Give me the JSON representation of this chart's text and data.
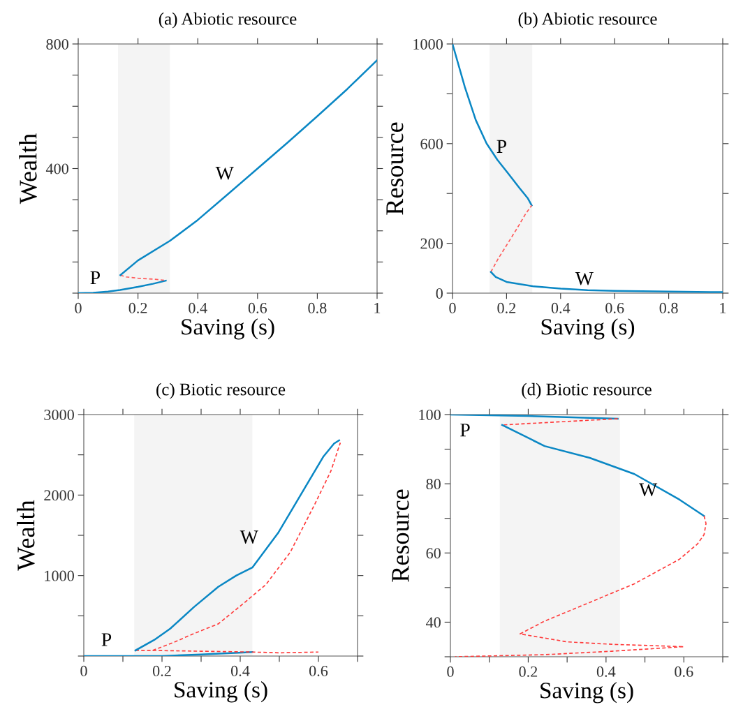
{
  "chart_data": [
    {
      "type": "line",
      "title": "(a) Abiotic resource",
      "xlabel": "Saving (s)",
      "ylabel": "Wealth",
      "xlim": [
        0,
        1
      ],
      "ylim": [
        0,
        800
      ],
      "xticks": [
        0,
        0.2,
        0.4,
        0.6,
        0.8,
        1
      ],
      "yticks": [
        {
          "value": 0,
          "label": null
        },
        {
          "value": 100,
          "label": null
        },
        {
          "value": 200,
          "label": null
        },
        {
          "value": 300,
          "label": null
        },
        400,
        {
          "value": 500,
          "label": null
        },
        {
          "value": 600,
          "label": null
        },
        {
          "value": 700,
          "label": null
        },
        800
      ],
      "grid": false,
      "marker": "none",
      "series": [
        {
          "color": "#0a87c4",
          "line_style": "solid",
          "x": [
            0,
            0.05,
            0.1,
            0.14,
            0.2,
            0.25,
            0.293
          ],
          "values": [
            0,
            1,
            5,
            10,
            20,
            30,
            40
          ]
        },
        {
          "color": "#ff5a5a",
          "line_style": "dashed",
          "x": [
            0.141,
            0.16,
            0.2,
            0.25,
            0.293
          ],
          "values": [
            58,
            52,
            48,
            45,
            41
          ]
        },
        {
          "color": "#0a87c4",
          "line_style": "solid",
          "x": [
            0.141,
            0.2,
            0.307,
            0.4,
            0.5,
            0.6,
            0.7,
            0.8,
            0.9,
            1
          ],
          "values": [
            58,
            105,
            168,
            235,
            317,
            400,
            483,
            568,
            655,
            748
          ]
        }
      ],
      "bands": [
        {
          "axis": "x",
          "from": 0.133,
          "to": 0.307,
          "color": "#f4f4f4"
        }
      ],
      "annotations": [
        "P",
        "W"
      ]
    },
    {
      "type": "line",
      "title": "(b) Abiotic resource",
      "xlabel": "Saving (s)",
      "ylabel": "Resource",
      "xlim": [
        0,
        1
      ],
      "ylim": [
        0,
        1000
      ],
      "xticks": [
        0,
        0.2,
        0.4,
        0.6,
        0.8,
        1
      ],
      "yticks": [
        0,
        200,
        {
          "value": 400,
          "label": null
        },
        600,
        {
          "value": 800,
          "label": null
        },
        1000
      ],
      "grid": false,
      "marker": "none",
      "series": [
        {
          "color": "#0a87c4",
          "line_style": "solid",
          "x": [
            0,
            0.046,
            0.086,
            0.126,
            0.166,
            0.207,
            0.247,
            0.279,
            0.293
          ],
          "values": [
            1000,
            826,
            695,
            601,
            535,
            479,
            423,
            380,
            352
          ]
        },
        {
          "color": "#ff5a5a",
          "line_style": "dashed",
          "x": [
            0.142,
            0.17,
            0.203,
            0.24,
            0.271,
            0.293
          ],
          "values": [
            85,
            140,
            197,
            262,
            319,
            352
          ]
        },
        {
          "color": "#0a87c4",
          "line_style": "solid",
          "x": [
            0.142,
            0.16,
            0.2,
            0.3,
            0.4,
            0.5,
            0.6,
            0.8,
            1
          ],
          "values": [
            85,
            65,
            45,
            27,
            18,
            12,
            9,
            6,
            4
          ]
        }
      ],
      "bands": [
        {
          "axis": "x",
          "from": 0.137,
          "to": 0.295,
          "color": "#f4f4f4"
        }
      ],
      "annotations": [
        "P",
        "W"
      ]
    },
    {
      "type": "line",
      "title": "(c) Biotic resource",
      "xlabel": "Saving (s)",
      "ylabel": "Wealth",
      "xlim": [
        0,
        0.7
      ],
      "ylim": [
        0,
        3000
      ],
      "xticks": [
        0,
        {
          "value": 0.1,
          "label": null
        },
        0.2,
        {
          "value": 0.3,
          "label": null
        },
        0.4,
        {
          "value": 0.5,
          "label": null
        },
        0.6,
        {
          "value": 0.7,
          "label": null
        }
      ],
      "yticks": [
        {
          "value": 0,
          "label": null
        },
        {
          "value": 500,
          "label": null
        },
        1000,
        {
          "value": 1500,
          "label": null
        },
        2000,
        {
          "value": 2500,
          "label": null
        },
        3000
      ],
      "grid": false,
      "marker": "none",
      "series": [
        {
          "color": "#0a87c4",
          "line_style": "solid",
          "x": [
            0,
            0.2,
            0.3,
            0.431
          ],
          "values": [
            0,
            0,
            20,
            50
          ]
        },
        {
          "color": "#ff3b3b",
          "line_style": "dashed",
          "x": [
            0.132,
            0.176,
            0.3,
            0.431,
            0.5,
            0.6
          ],
          "values": [
            70,
            70,
            60,
            50,
            40,
            50
          ]
        },
        {
          "color": "#0a87c4",
          "line_style": "solid",
          "x": [
            0.132,
            0.18,
            0.221,
            0.282,
            0.344,
            0.39,
            0.431,
            0.497,
            0.558,
            0.613,
            0.64,
            0.653
          ],
          "values": [
            70,
            200,
            340,
            610,
            860,
            1000,
            1100,
            1530,
            2030,
            2480,
            2640,
            2680
          ]
        },
        {
          "color": "#ff3b3b",
          "line_style": "dashed",
          "x": [
            0.176,
            0.23,
            0.282,
            0.344,
            0.405,
            0.466,
            0.528,
            0.589,
            0.632,
            0.656
          ],
          "values": [
            70,
            170,
            280,
            400,
            640,
            890,
            1290,
            1870,
            2300,
            2650
          ]
        }
      ],
      "bands": [
        {
          "axis": "x",
          "from": 0.129,
          "to": 0.431,
          "color": "#f4f4f4"
        }
      ],
      "annotations": [
        "P",
        "W"
      ]
    },
    {
      "type": "line",
      "title": "(d) Biotic resource",
      "xlabel": "Saving (s)",
      "ylabel": "Resource",
      "xlim": [
        0,
        0.7
      ],
      "ylim": [
        30,
        100
      ],
      "xticks": [
        0,
        {
          "value": 0.1,
          "label": null
        },
        0.2,
        {
          "value": 0.3,
          "label": null
        },
        0.4,
        {
          "value": 0.5,
          "label": null
        },
        0.6,
        {
          "value": 0.7,
          "label": null
        }
      ],
      "yticks": [
        {
          "value": 30,
          "label": null
        },
        40,
        {
          "value": 50,
          "label": null
        },
        60,
        {
          "value": 70,
          "label": null
        },
        80,
        {
          "value": 90,
          "label": null
        },
        100
      ],
      "grid": false,
      "marker": "none",
      "series": [
        {
          "color": "#0a87c4",
          "line_style": "solid",
          "x": [
            0,
            0.2,
            0.43
          ],
          "values": [
            100,
            99.6,
            98.8
          ]
        },
        {
          "color": "#ff3b3b",
          "line_style": "dashed",
          "x": [
            0.43,
            0.133
          ],
          "values": [
            98.8,
            97.0
          ]
        },
        {
          "color": "#0a87c4",
          "line_style": "solid",
          "x": [
            0.133,
            0.242,
            0.358,
            0.473,
            0.589,
            0.652
          ],
          "values": [
            97.0,
            90.9,
            87.5,
            82.8,
            75.4,
            70.7
          ]
        },
        {
          "color": "#ff3b3b",
          "line_style": "dashed",
          "x": [
            0.652,
            0.657,
            0.652,
            0.635,
            0.589,
            0.473,
            0.358,
            0.242,
            0.179,
            0.3,
            0.415,
            0.6,
            0.415,
            0.242,
            0.012
          ],
          "values": [
            70.7,
            68.5,
            65.3,
            62.6,
            58.2,
            51.1,
            45.7,
            40.3,
            36.6,
            34.3,
            33.6,
            32.9,
            31.6,
            30.6,
            30
          ]
        }
      ],
      "bands": [
        {
          "axis": "x",
          "from": 0.127,
          "to": 0.436,
          "color": "#f4f4f4"
        }
      ],
      "annotations": [
        "P",
        "W"
      ]
    }
  ]
}
